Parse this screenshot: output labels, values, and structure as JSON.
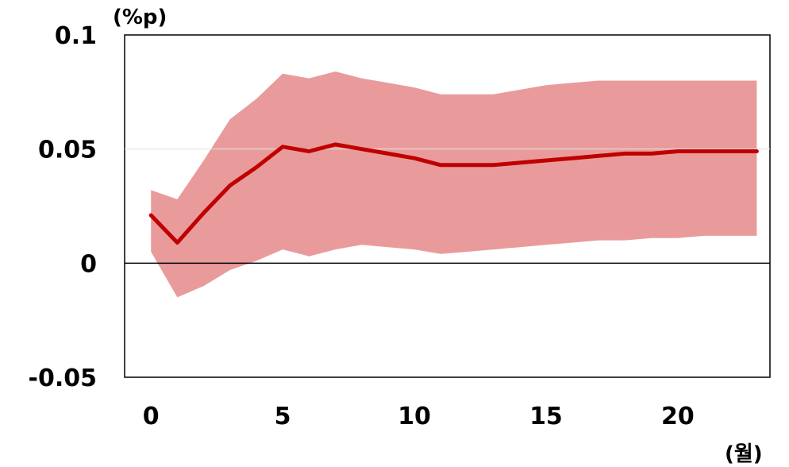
{
  "chart_data": {
    "type": "area",
    "x": [
      0,
      1,
      2,
      3,
      4,
      5,
      6,
      7,
      8,
      9,
      10,
      11,
      12,
      13,
      14,
      15,
      16,
      17,
      18,
      19,
      20,
      21,
      22,
      23
    ],
    "series": [
      {
        "values": [
          0.021,
          0.009,
          0.022,
          0.034,
          0.042,
          0.051,
          0.049,
          0.052,
          0.05,
          0.048,
          0.046,
          0.043,
          0.043,
          0.043,
          0.044,
          0.045,
          0.046,
          0.047,
          0.048,
          0.048,
          0.049,
          0.049,
          0.049,
          0.049
        ],
        "lower": [
          0.005,
          -0.015,
          -0.01,
          -0.003,
          0.001,
          0.006,
          0.003,
          0.006,
          0.008,
          0.007,
          0.006,
          0.004,
          0.005,
          0.006,
          0.007,
          0.008,
          0.009,
          0.01,
          0.01,
          0.011,
          0.011,
          0.012,
          0.012,
          0.012
        ],
        "upper": [
          0.032,
          0.028,
          0.045,
          0.063,
          0.072,
          0.083,
          0.081,
          0.084,
          0.081,
          0.079,
          0.077,
          0.074,
          0.074,
          0.074,
          0.076,
          0.078,
          0.079,
          0.08,
          0.08,
          0.08,
          0.08,
          0.08,
          0.08,
          0.08
        ]
      }
    ],
    "xlim": [
      -1,
      23.5
    ],
    "ylim": [
      -0.05,
      0.1
    ],
    "xticks": [
      0,
      5,
      10,
      15,
      20
    ],
    "yticks": [
      -0.05,
      0,
      0.05,
      0.1
    ],
    "xtick_labels": [
      "0",
      "5",
      "10",
      "15",
      "20"
    ],
    "ytick_labels": [
      "-0.05",
      "0",
      "0.05",
      "0.1"
    ],
    "y_unit_label": "(%p)",
    "x_unit_label": "(월)",
    "line_color": "#c00000",
    "band_color": "#e99b9b",
    "grid": false,
    "legend": "none"
  }
}
